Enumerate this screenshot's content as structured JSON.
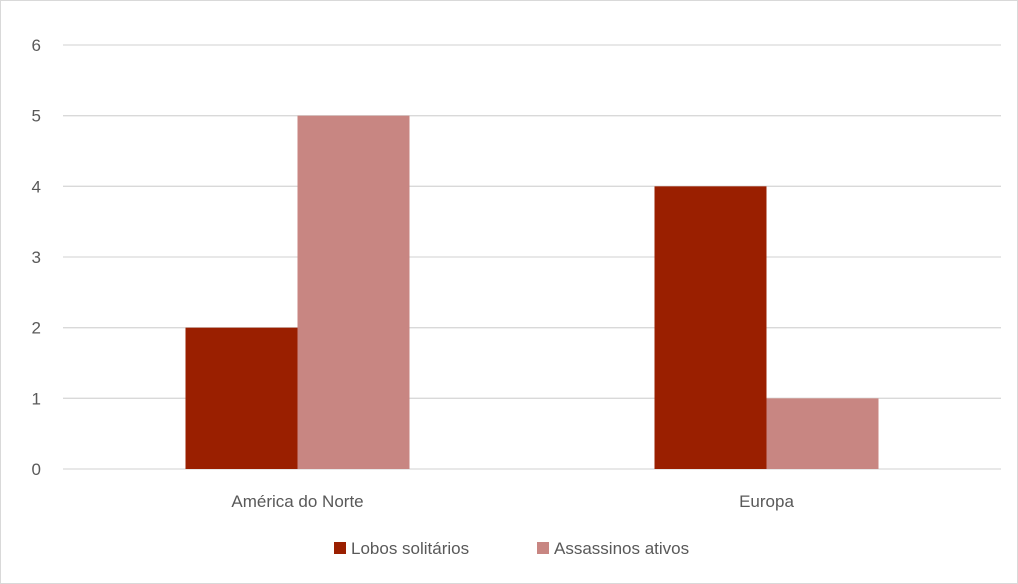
{
  "chart_data": {
    "type": "bar",
    "title": "",
    "xlabel": "",
    "ylabel": "",
    "categories": [
      "América do Norte",
      "Europa"
    ],
    "series": [
      {
        "name": "Lobos solitários",
        "values": [
          2,
          4
        ],
        "color": "#9a1f00"
      },
      {
        "name": "Assassinos ativos",
        "values": [
          5,
          1
        ],
        "color": "#c88682"
      }
    ],
    "ylim": [
      0,
      6
    ],
    "yticks": [
      0,
      1,
      2,
      3,
      4,
      5,
      6
    ],
    "grid": true,
    "legend_position": "bottom",
    "gridline_color": "#d9d9d9"
  }
}
